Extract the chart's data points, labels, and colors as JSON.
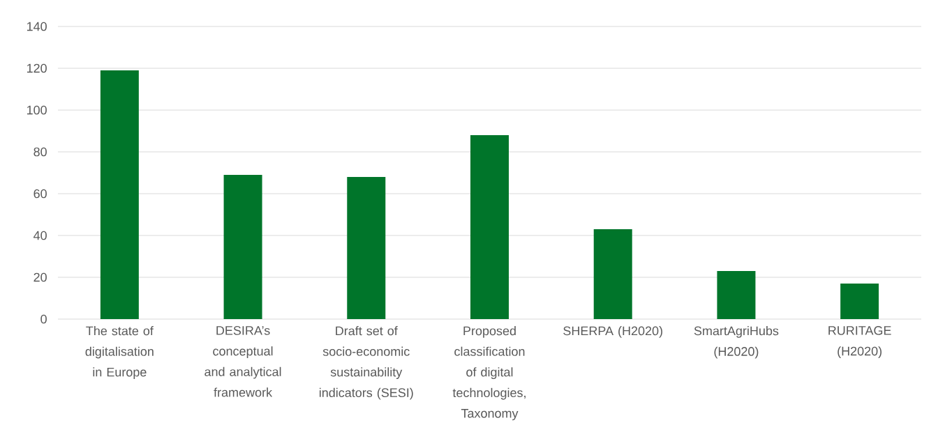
{
  "chart_data": {
    "type": "bar",
    "categories": [
      "The state of digitalisation in Europe",
      "DESIRA’s conceptual and analytical framework",
      "Draft set of socio-economic sustainability indicators (SESI)",
      "Proposed classification of digital technologies, Taxonomy",
      "SHERPA (H2020)",
      "SmartAgriHubs (H2020)",
      "RURITAGE (H2020)"
    ],
    "values": [
      119,
      69,
      68,
      88,
      43,
      23,
      17
    ],
    "color": "#00752a",
    "ylim": [
      0,
      140
    ],
    "yticks": [
      0,
      20,
      40,
      60,
      80,
      100,
      120,
      140
    ],
    "grid": "y"
  }
}
